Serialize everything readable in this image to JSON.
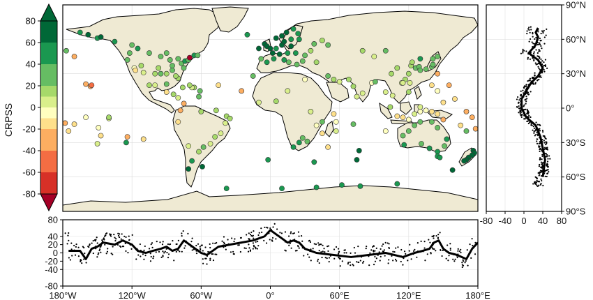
{
  "chart_data": [
    {
      "type": "scatter",
      "id": "map",
      "description_of_marks": "station markers on world map, colored by CRPSS",
      "xlim": [
        -180,
        180
      ],
      "ylim": [
        -90,
        90
      ],
      "colorbar": {
        "label": "CRPSS",
        "ticks": [
          "80",
          "60",
          "40",
          "20",
          "0",
          "-20",
          "-40",
          "-60",
          "-80"
        ],
        "bounds": [
          -90,
          -80,
          -60,
          -40,
          -20,
          -10,
          0,
          10,
          20,
          40,
          60,
          80,
          90
        ],
        "colors": [
          "#a50026",
          "#d73027",
          "#f46d43",
          "#fdae61",
          "#fee08b",
          "#ffffbf",
          "#d9ef8b",
          "#a6d96a",
          "#66bd63",
          "#1a9850",
          "#006837"
        ]
      },
      "land_color": "#efead3",
      "points": [
        [
          -158,
          64,
          62
        ],
        [
          -150,
          61,
          50
        ],
        [
          -147,
          62,
          62
        ],
        [
          -165,
          66,
          58
        ],
        [
          -135,
          58,
          45
        ],
        [
          -124,
          42,
          25
        ],
        [
          -122,
          48,
          30
        ],
        [
          -118,
          35,
          -5
        ],
        [
          -117,
          33,
          -15
        ],
        [
          -110,
          31,
          5
        ],
        [
          -97,
          35,
          15
        ],
        [
          -95,
          30,
          20
        ],
        [
          -90,
          30,
          18
        ],
        [
          -85,
          33,
          22
        ],
        [
          -80,
          26,
          15
        ],
        [
          -82,
          28,
          12
        ],
        [
          -77,
          39,
          30
        ],
        [
          -74,
          41,
          40
        ],
        [
          -71,
          42,
          35
        ],
        [
          -66,
          46,
          50
        ],
        [
          -63,
          46,
          20
        ],
        [
          -70,
          44,
          -85
        ],
        [
          -84,
          12,
          15
        ],
        [
          -90,
          14,
          -20
        ],
        [
          -100,
          20,
          5
        ],
        [
          -105,
          20,
          10
        ],
        [
          -76,
          18,
          15
        ],
        [
          -66,
          18,
          10
        ],
        [
          -61,
          15,
          20
        ],
        [
          -80,
          9,
          0
        ],
        [
          -75,
          4,
          -25
        ],
        [
          -78,
          -2,
          -30
        ],
        [
          -80,
          -12,
          -15
        ],
        [
          -71,
          -33,
          0
        ],
        [
          -60,
          -3,
          10
        ],
        [
          -47,
          -2,
          15
        ],
        [
          -38,
          -7,
          15
        ],
        [
          -35,
          -9,
          10
        ],
        [
          -39,
          -13,
          5
        ],
        [
          -43,
          -22,
          0
        ],
        [
          -48,
          -25,
          10
        ],
        [
          -52,
          -31,
          5
        ],
        [
          -58,
          -34,
          20
        ],
        [
          -62,
          -38,
          10
        ],
        [
          -68,
          -46,
          45
        ],
        [
          -71,
          -53,
          70
        ],
        [
          -59,
          -51,
          70
        ],
        [
          -160,
          21,
          -40
        ],
        [
          -156,
          19,
          -30
        ],
        [
          -155,
          20,
          -45
        ],
        [
          -170,
          -14,
          -20
        ],
        [
          -149,
          -17,
          -10
        ],
        [
          -140,
          -9,
          0
        ],
        [
          -175,
          -20,
          -15
        ],
        [
          -178,
          -13,
          -25
        ],
        [
          -147,
          -24,
          -20
        ],
        [
          -140,
          -8,
          10
        ],
        [
          -160,
          -8,
          -5
        ],
        [
          -124,
          -25,
          -30
        ],
        [
          -110,
          -27,
          -20
        ],
        [
          -150,
          -31,
          5
        ],
        [
          -125,
          -30,
          40
        ],
        [
          -20,
          64,
          50
        ],
        [
          -5,
          56,
          70
        ],
        [
          -3,
          54,
          75
        ],
        [
          0,
          52,
          65
        ],
        [
          2,
          48,
          60
        ],
        [
          5,
          52,
          55
        ],
        [
          10,
          55,
          70
        ],
        [
          12,
          58,
          62
        ],
        [
          18,
          60,
          55
        ],
        [
          25,
          60,
          50
        ],
        [
          24,
          65,
          40
        ],
        [
          10,
          63,
          65
        ],
        [
          14,
          66,
          60
        ],
        [
          20,
          69,
          55
        ],
        [
          5,
          61,
          70
        ],
        [
          18,
          54,
          60
        ],
        [
          22,
          48,
          40
        ],
        [
          15,
          48,
          55
        ],
        [
          8,
          47,
          65
        ],
        [
          -8,
          43,
          35
        ],
        [
          -3,
          40,
          40
        ],
        [
          3,
          43,
          45
        ],
        [
          12,
          42,
          40
        ],
        [
          16,
          40,
          30
        ],
        [
          23,
          38,
          35
        ],
        [
          28,
          41,
          30
        ],
        [
          30,
          46,
          25
        ],
        [
          35,
          50,
          15
        ],
        [
          38,
          56,
          20
        ],
        [
          45,
          59,
          10
        ],
        [
          50,
          55,
          25
        ],
        [
          40,
          40,
          15
        ],
        [
          -15,
          28,
          20
        ],
        [
          -25,
          15,
          -25
        ],
        [
          -10,
          5,
          5
        ],
        [
          5,
          6,
          10
        ],
        [
          15,
          15,
          0
        ],
        [
          30,
          25,
          -5
        ],
        [
          35,
          -3,
          5
        ],
        [
          40,
          -15,
          -10
        ],
        [
          45,
          -22,
          -20
        ],
        [
          57,
          -20,
          0
        ],
        [
          28,
          -26,
          30
        ],
        [
          25,
          -30,
          40
        ],
        [
          20,
          -34,
          50
        ],
        [
          32,
          -29,
          35
        ],
        [
          45,
          -12,
          30
        ],
        [
          57,
          -12,
          -10
        ],
        [
          72,
          -14,
          20
        ],
        [
          75,
          -45,
          60
        ],
        [
          77,
          -37,
          60
        ],
        [
          50,
          28,
          20
        ],
        [
          55,
          25,
          10
        ],
        [
          60,
          23,
          5
        ],
        [
          68,
          25,
          10
        ],
        [
          72,
          19,
          10
        ],
        [
          80,
          13,
          0
        ],
        [
          75,
          10,
          5
        ],
        [
          88,
          22,
          -5
        ],
        [
          91,
          23,
          20
        ],
        [
          100,
          14,
          5
        ],
        [
          106,
          11,
          0
        ],
        [
          104,
          1,
          10
        ],
        [
          110,
          -7,
          -15
        ],
        [
          115,
          -8,
          -20
        ],
        [
          120,
          -10,
          -10
        ],
        [
          125,
          -5,
          5
        ],
        [
          130,
          -3,
          -5
        ],
        [
          135,
          -2,
          -10
        ],
        [
          140,
          -3,
          -15
        ],
        [
          145,
          -5,
          -20
        ],
        [
          150,
          -10,
          -30
        ],
        [
          130,
          1,
          5
        ],
        [
          120,
          14,
          10
        ],
        [
          121,
          22,
          5
        ],
        [
          114,
          22,
          0
        ],
        [
          117,
          25,
          10
        ],
        [
          120,
          30,
          10
        ],
        [
          122,
          37,
          15
        ],
        [
          126,
          35,
          20
        ],
        [
          129,
          36,
          25
        ],
        [
          130,
          33,
          25
        ],
        [
          135,
          34,
          30
        ],
        [
          140,
          36,
          30
        ],
        [
          141,
          38,
          30
        ],
        [
          141,
          43,
          25
        ],
        [
          145,
          45,
          30
        ],
        [
          130,
          43,
          40
        ],
        [
          123,
          40,
          15
        ],
        [
          110,
          35,
          15
        ],
        [
          105,
          30,
          10
        ],
        [
          90,
          45,
          5
        ],
        [
          80,
          50,
          10
        ],
        [
          100,
          50,
          20
        ],
        [
          115,
          22,
          5
        ],
        [
          140,
          20,
          -20
        ],
        [
          145,
          15,
          -10
        ],
        [
          145,
          30,
          -30
        ],
        [
          155,
          20,
          -30
        ],
        [
          160,
          8,
          -20
        ],
        [
          170,
          -3,
          -25
        ],
        [
          175,
          -8,
          -30
        ],
        [
          165,
          -15,
          -20
        ],
        [
          178,
          -18,
          -25
        ],
        [
          170,
          -20,
          20
        ],
        [
          150,
          5,
          -20
        ],
        [
          153,
          -27,
          40
        ],
        [
          151,
          -33,
          35
        ],
        [
          145,
          -38,
          45
        ],
        [
          138,
          -35,
          40
        ],
        [
          131,
          -31,
          35
        ],
        [
          116,
          -32,
          50
        ],
        [
          115,
          -24,
          30
        ],
        [
          120,
          -20,
          20
        ],
        [
          125,
          -15,
          20
        ],
        [
          130,
          -12,
          30
        ],
        [
          140,
          -12,
          25
        ],
        [
          145,
          -17,
          20
        ],
        [
          145,
          -42,
          50
        ],
        [
          147,
          -43,
          50
        ],
        [
          176,
          -37,
          60
        ],
        [
          177,
          -39,
          65
        ],
        [
          175,
          -41,
          70
        ],
        [
          172,
          -43,
          65
        ],
        [
          170,
          -45,
          70
        ],
        [
          168,
          -46,
          60
        ],
        [
          -38,
          -70,
          50
        ],
        [
          10,
          -70,
          45
        ],
        [
          40,
          -69,
          45
        ],
        [
          62,
          -67,
          45
        ],
        [
          78,
          -68,
          50
        ],
        [
          110,
          -66,
          50
        ],
        [
          158,
          -54,
          60
        ],
        [
          -2,
          -45,
          45
        ],
        [
          38,
          -47,
          55
        ],
        [
          50,
          -34,
          -20
        ],
        [
          55,
          -5,
          -15
        ],
        [
          100,
          -20,
          -10
        ],
        [
          -45,
          20,
          -15
        ],
        [
          -10,
          52,
          60
        ],
        [
          -68,
          18,
          5
        ],
        [
          -90,
          21,
          25
        ],
        [
          -62,
          10,
          20
        ],
        [
          -115,
          52,
          40
        ],
        [
          -105,
          48,
          30
        ],
        [
          -95,
          45,
          25
        ],
        [
          -87,
          42,
          30
        ],
        [
          -80,
          43,
          35
        ],
        [
          -112,
          37,
          15
        ],
        [
          -85,
          37,
          20
        ],
        [
          -75,
          35,
          20
        ],
        [
          -70,
          20,
          10
        ],
        [
          -170,
          45,
          -40
        ],
        [
          -177,
          50,
          20
        ],
        [
          -120,
          55,
          35
        ],
        [
          -90,
          48,
          30
        ],
        [
          -100,
          30,
          10
        ]
      ]
    },
    {
      "type": "scatter",
      "id": "latitude-panel",
      "x_axis": {
        "ticks": [
          "-80",
          "-40",
          "0",
          "40",
          "80"
        ],
        "range": [
          -80,
          80
        ]
      },
      "y_axis": {
        "ticks": [
          "90°N",
          "60°N",
          "30°N",
          "0°",
          "30°S",
          "60°S",
          "90°S"
        ],
        "range": [
          -90,
          90
        ]
      },
      "line": [
        [
          -60,
          40
        ],
        [
          -45,
          45
        ],
        [
          -35,
          40
        ],
        [
          -25,
          35
        ],
        [
          -15,
          25
        ],
        [
          -8,
          5
        ],
        [
          0,
          -5
        ],
        [
          8,
          -5
        ],
        [
          15,
          5
        ],
        [
          22,
          15
        ],
        [
          28,
          30
        ],
        [
          35,
          40
        ],
        [
          42,
          30
        ],
        [
          48,
          10
        ],
        [
          55,
          25
        ],
        [
          62,
          30
        ],
        [
          66,
          25
        ],
        [
          70,
          30
        ]
      ]
    },
    {
      "type": "scatter",
      "id": "longitude-panel",
      "x_axis": {
        "ticks": [
          "180°W",
          "120°W",
          "60°W",
          "0°",
          "60°E",
          "120°E",
          "180°E"
        ],
        "range": [
          -180,
          180
        ]
      },
      "y_axis": {
        "ticks": [
          "80",
          "40",
          "20",
          "0",
          "-20",
          "-40",
          "-80"
        ],
        "range": [
          -80,
          80
        ]
      },
      "line": [
        [
          -175,
          5
        ],
        [
          -165,
          5
        ],
        [
          -160,
          -15
        ],
        [
          -155,
          10
        ],
        [
          -150,
          15
        ],
        [
          -145,
          25
        ],
        [
          -135,
          20
        ],
        [
          -128,
          30
        ],
        [
          -120,
          20
        ],
        [
          -115,
          5
        ],
        [
          -108,
          0
        ],
        [
          -102,
          5
        ],
        [
          -95,
          10
        ],
        [
          -90,
          15
        ],
        [
          -85,
          5
        ],
        [
          -80,
          10
        ],
        [
          -75,
          30
        ],
        [
          -70,
          20
        ],
        [
          -65,
          10
        ],
        [
          -60,
          0
        ],
        [
          -55,
          -5
        ],
        [
          -45,
          15
        ],
        [
          -35,
          20
        ],
        [
          -25,
          25
        ],
        [
          -15,
          30
        ],
        [
          -5,
          40
        ],
        [
          0,
          55
        ],
        [
          5,
          45
        ],
        [
          10,
          35
        ],
        [
          15,
          25
        ],
        [
          20,
          30
        ],
        [
          25,
          25
        ],
        [
          30,
          10
        ],
        [
          40,
          0
        ],
        [
          55,
          -5
        ],
        [
          70,
          -10
        ],
        [
          85,
          -5
        ],
        [
          100,
          0
        ],
        [
          115,
          -10
        ],
        [
          125,
          0
        ],
        [
          132,
          5
        ],
        [
          138,
          10
        ],
        [
          142,
          25
        ],
        [
          146,
          30
        ],
        [
          150,
          10
        ],
        [
          155,
          0
        ],
        [
          162,
          -5
        ],
        [
          170,
          -15
        ],
        [
          175,
          10
        ],
        [
          180,
          25
        ]
      ]
    }
  ]
}
